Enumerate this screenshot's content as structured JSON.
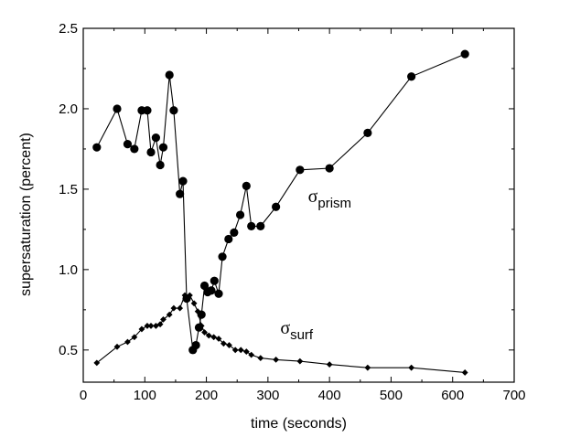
{
  "chart_data": {
    "type": "line",
    "title": "",
    "xlabel": "time (seconds)",
    "ylabel": "supersaturation (percent)",
    "xlim": [
      0,
      700
    ],
    "ylim": [
      0.3,
      2.5
    ],
    "xticks": [
      0,
      100,
      200,
      300,
      400,
      500,
      600,
      700
    ],
    "yticks": [
      0.5,
      1.0,
      1.5,
      2.0,
      2.5
    ],
    "xtick_labels": [
      "0",
      "100",
      "200",
      "300",
      "400",
      "500",
      "600",
      "700"
    ],
    "ytick_labels": [
      "0.5",
      "1.0",
      "1.5",
      "2.0",
      "2.5"
    ],
    "grid": false,
    "series": [
      {
        "name": "prism",
        "marker": "circle",
        "annotation": {
          "base": "σ",
          "sub": "prism",
          "x": 365,
          "y": 1.42
        },
        "x": [
          22,
          55,
          72,
          83,
          95,
          104,
          110,
          118,
          125,
          130,
          140,
          147,
          157,
          162,
          168,
          178,
          183,
          188,
          192,
          197,
          202,
          208,
          213,
          220,
          226,
          236,
          245,
          255,
          265,
          273,
          288,
          313,
          352,
          400,
          462,
          533,
          620
        ],
        "y": [
          1.76,
          2.0,
          1.78,
          1.75,
          1.99,
          1.99,
          1.73,
          1.82,
          1.65,
          1.76,
          2.21,
          1.99,
          1.47,
          1.55,
          0.82,
          0.5,
          0.53,
          0.64,
          0.72,
          0.9,
          0.86,
          0.87,
          0.93,
          0.85,
          1.08,
          1.19,
          1.23,
          1.34,
          1.52,
          1.27,
          1.27,
          1.39,
          1.62,
          1.63,
          1.85,
          2.2,
          2.34
        ]
      },
      {
        "name": "surf",
        "marker": "diamond",
        "annotation": {
          "base": "σ",
          "sub": "surf",
          "x": 320,
          "y": 0.6
        },
        "x": [
          22,
          55,
          72,
          83,
          95,
          104,
          110,
          118,
          125,
          130,
          140,
          147,
          157,
          165,
          173,
          180,
          186,
          192,
          197,
          204,
          212,
          220,
          228,
          237,
          247,
          256,
          265,
          273,
          288,
          313,
          352,
          400,
          462,
          533,
          620
        ],
        "y": [
          0.42,
          0.52,
          0.55,
          0.58,
          0.63,
          0.65,
          0.65,
          0.65,
          0.66,
          0.69,
          0.72,
          0.76,
          0.76,
          0.84,
          0.84,
          0.79,
          0.74,
          0.65,
          0.61,
          0.59,
          0.58,
          0.57,
          0.54,
          0.53,
          0.5,
          0.5,
          0.49,
          0.47,
          0.45,
          0.44,
          0.43,
          0.41,
          0.39,
          0.39,
          0.36
        ]
      }
    ]
  }
}
